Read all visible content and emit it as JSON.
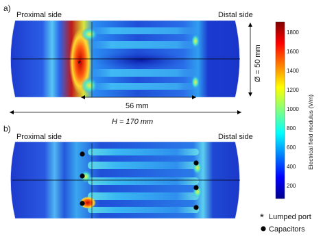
{
  "panel_a": {
    "label": "a)",
    "left_title": "Proximal side",
    "right_title": "Distal side",
    "diameter_label": "Ø = 50 mm",
    "width_label": "56 mm",
    "length_label": "H = 170  mm"
  },
  "panel_b": {
    "label": "b)",
    "left_title": "Proximal side",
    "right_title": "Distal side"
  },
  "colorbar": {
    "title": "Electrical field modulus (V/m)",
    "ticks": [
      "1800",
      "1600",
      "1400",
      "1200",
      "1000",
      "800",
      "600",
      "400",
      "200"
    ],
    "min_color": "#00008f",
    "max_color": "#800000"
  },
  "legend": {
    "lumped_port_symbol": "*",
    "lumped_port_label": "Lumped port",
    "capacitors_label": "Capacitors"
  }
}
